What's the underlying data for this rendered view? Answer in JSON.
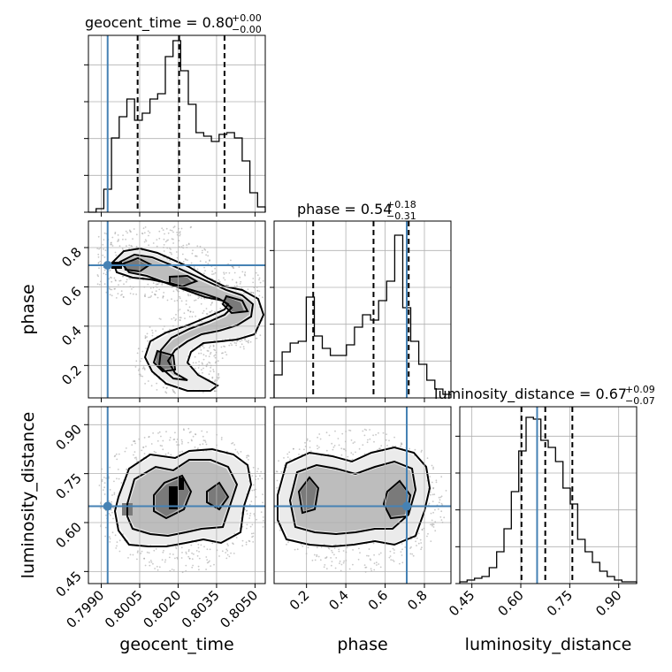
{
  "chart_data": {
    "type": "corner",
    "parameters": [
      "geocent_time",
      "phase",
      "luminosity_distance"
    ],
    "titles": [
      {
        "main": "geocent_time = 0.80",
        "sup": "+0.00",
        "sub": "−0.00"
      },
      {
        "main": "phase = 0.54",
        "sup": "+0.18",
        "sub": "−0.31"
      },
      {
        "main": "luminosity_distance = 0.67",
        "sup": "+0.09",
        "sub": "−0.07"
      }
    ],
    "axis_labels": {
      "x": [
        "geocent_time",
        "phase",
        "luminosity_distance"
      ],
      "y": [
        "phase",
        "luminosity_distance"
      ]
    },
    "ranges": {
      "geocent_time": [
        0.7985,
        0.8054
      ],
      "phase": [
        0.035,
        0.935
      ],
      "luminosity_distance": [
        0.413,
        0.955
      ]
    },
    "ticks": {
      "geocent_time": [
        "0.7990",
        "0.8005",
        "0.8020",
        "0.8035",
        "0.8050"
      ],
      "phase": [
        "0.2",
        "0.4",
        "0.6",
        "0.8"
      ],
      "luminosity_distance": [
        "0.45",
        "0.60",
        "0.75",
        "0.90"
      ]
    },
    "truth": {
      "geocent_time": 0.79925,
      "phase": 0.71,
      "luminosity_distance": 0.65
    },
    "quantiles": {
      "geocent_time": [
        0.80042,
        0.80204,
        0.80381
      ],
      "phase": [
        0.234,
        0.541,
        0.72
      ],
      "luminosity_distance": [
        0.602,
        0.675,
        0.758
      ]
    },
    "histograms": {
      "geocent_time": [
        0,
        0.02,
        0.13,
        0.42,
        0.54,
        0.64,
        0.52,
        0.56,
        0.64,
        0.67,
        0.88,
        0.97,
        0.8,
        0.61,
        0.45,
        0.43,
        0.4,
        0.44,
        0.45,
        0.42,
        0.29,
        0.11,
        0.03
      ],
      "phase": [
        0.13,
        0.26,
        0.31,
        0.32,
        0.57,
        0.35,
        0.28,
        0.24,
        0.24,
        0.3,
        0.4,
        0.47,
        0.44,
        0.55,
        0.66,
        0.92,
        0.51,
        0.32,
        0.19,
        0.1,
        0.05,
        0.02
      ],
      "luminosity_distance": [
        0.01,
        0.02,
        0.03,
        0.04,
        0.09,
        0.18,
        0.31,
        0.52,
        0.75,
        0.94,
        0.93,
        0.81,
        0.77,
        0.69,
        0.54,
        0.45,
        0.25,
        0.18,
        0.12,
        0.07,
        0.04,
        0.02,
        0.01,
        0.01
      ]
    }
  }
}
